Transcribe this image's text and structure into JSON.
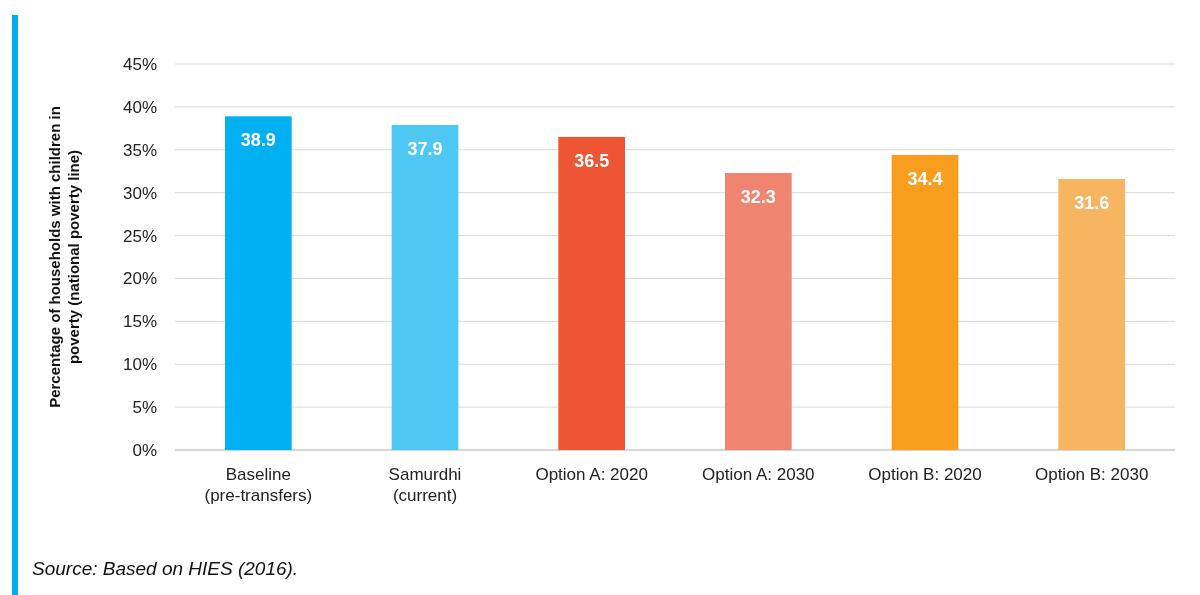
{
  "chart_data": {
    "type": "bar",
    "ylabel": "Percentage of households with children in poverty (national poverty line)",
    "categories": [
      "Baseline (pre-transfers)",
      "Samurdhi (current)",
      "Option A: 2020",
      "Option A: 2030",
      "Option B: 2020",
      "Option B: 2030"
    ],
    "values": [
      38.9,
      37.9,
      36.5,
      32.3,
      34.4,
      31.6
    ],
    "colors": [
      "#00b0f0",
      "#4ec8f2",
      "#ee5535",
      "#ef8470",
      "#f99d1e",
      "#f7b561"
    ],
    "ylim": [
      0,
      45
    ],
    "yticks": [
      {
        "value": 0,
        "label": "0%"
      },
      {
        "value": 5,
        "label": "5%"
      },
      {
        "value": 10,
        "label": "10%"
      },
      {
        "value": 15,
        "label": "15%"
      },
      {
        "value": 20,
        "label": "20%"
      },
      {
        "value": 25,
        "label": "25%"
      },
      {
        "value": 30,
        "label": "30%"
      },
      {
        "value": 35,
        "label": "35%"
      },
      {
        "value": 40,
        "label": "40%"
      },
      {
        "value": 45,
        "label": "45%"
      }
    ],
    "grid": "y",
    "data_labels": true,
    "annotations": [
      "Source: Based on HIES (2016)."
    ]
  }
}
